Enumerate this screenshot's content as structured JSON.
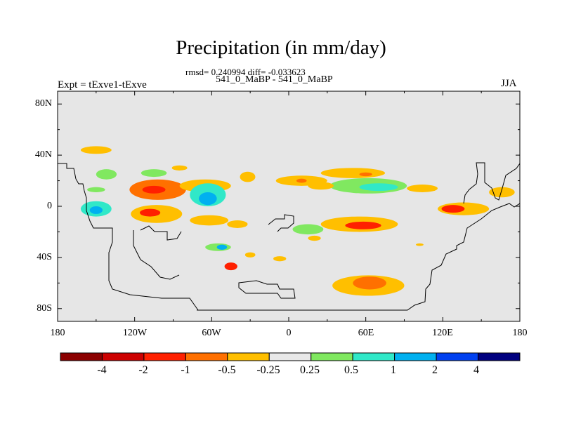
{
  "title": "Precipitation (in mm/day)",
  "subtitle_stats": "rmsd= 0.240994 diff= -0.033623",
  "subtitle_runs": "541_0_MaBP - 541_0_MaBP",
  "left_label": "Expt = tExve1-tExve",
  "right_label": "JJA",
  "chart_data": {
    "type": "heatmap",
    "title": "Precipitation (in mm/day)",
    "variable": "Precipitation difference",
    "units": "mm/day",
    "season": "JJA",
    "xlim": [
      -180,
      180
    ],
    "ylim": [
      -90,
      90
    ],
    "x_tick_labels": [
      "180",
      "120W",
      "60W",
      "0",
      "60E",
      "120E",
      "180"
    ],
    "y_tick_labels": [
      "80N",
      "40N",
      "0",
      "40S",
      "80S"
    ],
    "x_tick_values": [
      -180,
      -120,
      -60,
      0,
      60,
      120,
      180
    ],
    "y_tick_values": [
      80,
      40,
      0,
      -40,
      -80
    ],
    "colorbar": {
      "levels": [
        -4,
        -2,
        -1,
        -0.5,
        -0.25,
        0.25,
        0.5,
        1,
        2,
        4
      ],
      "labels": [
        "-4",
        "-2",
        "-1",
        "-0.5",
        "-0.25",
        "0.25",
        "0.5",
        "1",
        "2",
        "4"
      ],
      "colors": [
        "#8b0000",
        "#cc0000",
        "#ff2000",
        "#ff7000",
        "#ffbf00",
        "#e8e8e8",
        "#80e860",
        "#30e8c8",
        "#00b0f0",
        "#0040f0",
        "#00007f"
      ]
    },
    "regions": [
      {
        "lon": -150,
        "lat": 44,
        "rx": 12,
        "ry": 3,
        "value": -0.4
      },
      {
        "lon": -102,
        "lat": 13,
        "rx": 22,
        "ry": 8,
        "value": -0.6
      },
      {
        "lon": -105,
        "lat": 13,
        "rx": 9,
        "ry": 3,
        "value": -1.5
      },
      {
        "lon": -105,
        "lat": 26,
        "rx": 10,
        "ry": 3,
        "value": 0.3
      },
      {
        "lon": -150,
        "lat": 13,
        "rx": 7,
        "ry": 2,
        "value": 0.3
      },
      {
        "lon": -142,
        "lat": 25,
        "rx": 8,
        "ry": 4,
        "value": 0.3
      },
      {
        "lon": -65,
        "lat": 16,
        "rx": 20,
        "ry": 5,
        "value": -0.3
      },
      {
        "lon": -32,
        "lat": 23,
        "rx": 6,
        "ry": 4,
        "value": -0.3
      },
      {
        "lon": -85,
        "lat": 30,
        "rx": 6,
        "ry": 2,
        "value": -0.3
      },
      {
        "lon": -63,
        "lat": 9,
        "rx": 14,
        "ry": 9,
        "value": 0.5
      },
      {
        "lon": -63,
        "lat": 6,
        "rx": 7,
        "ry": 5,
        "value": 1.2
      },
      {
        "lon": -150,
        "lat": -2,
        "rx": 12,
        "ry": 6,
        "value": 0.5
      },
      {
        "lon": -150,
        "lat": -3,
        "rx": 5,
        "ry": 3,
        "value": 1.2
      },
      {
        "lon": -103,
        "lat": -6,
        "rx": 20,
        "ry": 7,
        "value": -0.5
      },
      {
        "lon": -108,
        "lat": -5,
        "rx": 8,
        "ry": 3,
        "value": -1.5
      },
      {
        "lon": -62,
        "lat": -11,
        "rx": 15,
        "ry": 4,
        "value": -0.3
      },
      {
        "lon": -40,
        "lat": -14,
        "rx": 8,
        "ry": 3,
        "value": -0.3
      },
      {
        "lon": -55,
        "lat": -32,
        "rx": 10,
        "ry": 3,
        "value": 0.4
      },
      {
        "lon": -52,
        "lat": -32,
        "rx": 4,
        "ry": 2,
        "value": 1.2
      },
      {
        "lon": -45,
        "lat": -47,
        "rx": 5,
        "ry": 3,
        "value": -1.2
      },
      {
        "lon": -30,
        "lat": -38,
        "rx": 4,
        "ry": 2,
        "value": -0.3
      },
      {
        "lon": -7,
        "lat": -41,
        "rx": 5,
        "ry": 2,
        "value": -0.3
      },
      {
        "lon": 10,
        "lat": 20,
        "rx": 20,
        "ry": 4,
        "value": -0.4
      },
      {
        "lon": 10,
        "lat": 20,
        "rx": 4,
        "ry": 1.6,
        "value": -0.8
      },
      {
        "lon": 50,
        "lat": 26,
        "rx": 25,
        "ry": 4,
        "value": -0.4
      },
      {
        "lon": 60,
        "lat": 25,
        "rx": 5,
        "ry": 1.5,
        "value": -0.8
      },
      {
        "lon": 62,
        "lat": 16,
        "rx": 30,
        "ry": 6,
        "value": 0.4
      },
      {
        "lon": 70,
        "lat": 15,
        "rx": 15,
        "ry": 3,
        "value": 0.8
      },
      {
        "lon": 25,
        "lat": 16,
        "rx": 10,
        "ry": 3,
        "value": -0.3
      },
      {
        "lon": 104,
        "lat": 14,
        "rx": 12,
        "ry": 3,
        "value": -0.3
      },
      {
        "lon": 136,
        "lat": -2,
        "rx": 20,
        "ry": 5,
        "value": -0.5
      },
      {
        "lon": 128,
        "lat": -2,
        "rx": 9,
        "ry": 3,
        "value": -1.5
      },
      {
        "lon": 166,
        "lat": 11,
        "rx": 10,
        "ry": 4,
        "value": -0.5
      },
      {
        "lon": 55,
        "lat": -14,
        "rx": 30,
        "ry": 6,
        "value": -0.5
      },
      {
        "lon": 58,
        "lat": -15,
        "rx": 14,
        "ry": 3,
        "value": -1.5
      },
      {
        "lon": 15,
        "lat": -18,
        "rx": 12,
        "ry": 4,
        "value": 0.4
      },
      {
        "lon": 20,
        "lat": -25,
        "rx": 5,
        "ry": 2,
        "value": -0.3
      },
      {
        "lon": 62,
        "lat": -62,
        "rx": 28,
        "ry": 8,
        "value": -0.4
      },
      {
        "lon": 63,
        "lat": -60,
        "rx": 13,
        "ry": 5,
        "value": -0.8
      },
      {
        "lon": 102,
        "lat": -30,
        "rx": 3,
        "ry": 1,
        "value": -0.3
      }
    ]
  }
}
